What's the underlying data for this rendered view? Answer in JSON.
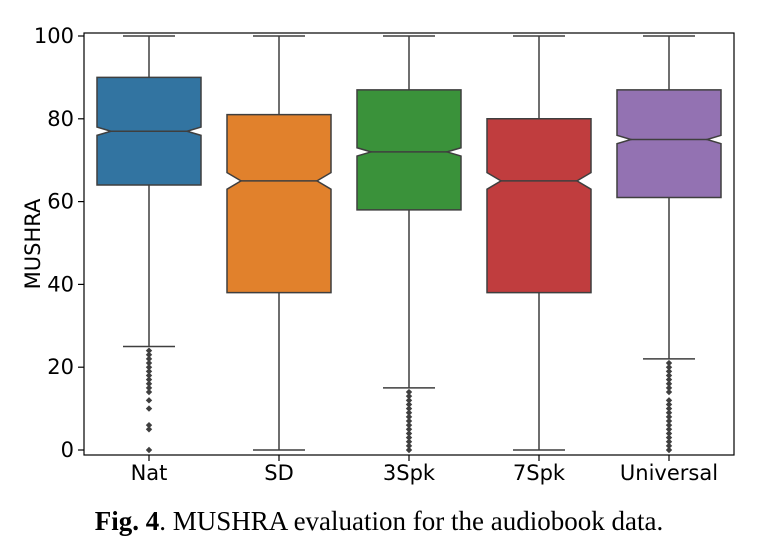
{
  "chart_data": {
    "type": "box",
    "title": "",
    "xlabel": "",
    "ylabel": "MUSHRA",
    "ylim": [
      0,
      100
    ],
    "yticks": [
      0,
      20,
      40,
      60,
      80,
      100
    ],
    "notched": true,
    "grid": false,
    "categories": [
      "Nat",
      "SD",
      "3Spk",
      "7Spk",
      "Universal"
    ],
    "boxes": [
      {
        "name": "Nat",
        "color": "#3274a1",
        "whisker_low": 25,
        "q1": 64,
        "median": 77,
        "q3": 90,
        "whisker_high": 100,
        "notch_low": 76,
        "notch_high": 78,
        "outliers": [
          24,
          23,
          22,
          21,
          20,
          19,
          18,
          17,
          16,
          15,
          14,
          12,
          10,
          6,
          5,
          0
        ]
      },
      {
        "name": "SD",
        "color": "#e1812c",
        "whisker_low": 0,
        "q1": 38,
        "median": 65,
        "q3": 81,
        "whisker_high": 100,
        "notch_low": 63,
        "notch_high": 67,
        "outliers": []
      },
      {
        "name": "3Spk",
        "color": "#3a923a",
        "whisker_low": 15,
        "q1": 58,
        "median": 72,
        "q3": 87,
        "whisker_high": 100,
        "notch_low": 71,
        "notch_high": 73,
        "outliers": [
          14,
          13,
          12,
          11,
          10,
          9,
          8,
          7,
          6,
          5,
          4,
          3,
          2,
          1,
          0
        ]
      },
      {
        "name": "7Spk",
        "color": "#c03d3e",
        "whisker_low": 0,
        "q1": 38,
        "median": 65,
        "q3": 80,
        "whisker_high": 100,
        "notch_low": 63,
        "notch_high": 67,
        "outliers": []
      },
      {
        "name": "Universal",
        "color": "#9372b2",
        "whisker_low": 22,
        "q1": 61,
        "median": 75,
        "q3": 87,
        "whisker_high": 100,
        "notch_low": 74,
        "notch_high": 76,
        "outliers": [
          21,
          20,
          19,
          18,
          17,
          16,
          15,
          14,
          12,
          11,
          10,
          9,
          8,
          7,
          6,
          5,
          4,
          3,
          2,
          1,
          0
        ]
      }
    ]
  },
  "caption": {
    "fig_label": "Fig. 4",
    "text": ". MUSHRA evaluation for the audiobook data."
  }
}
